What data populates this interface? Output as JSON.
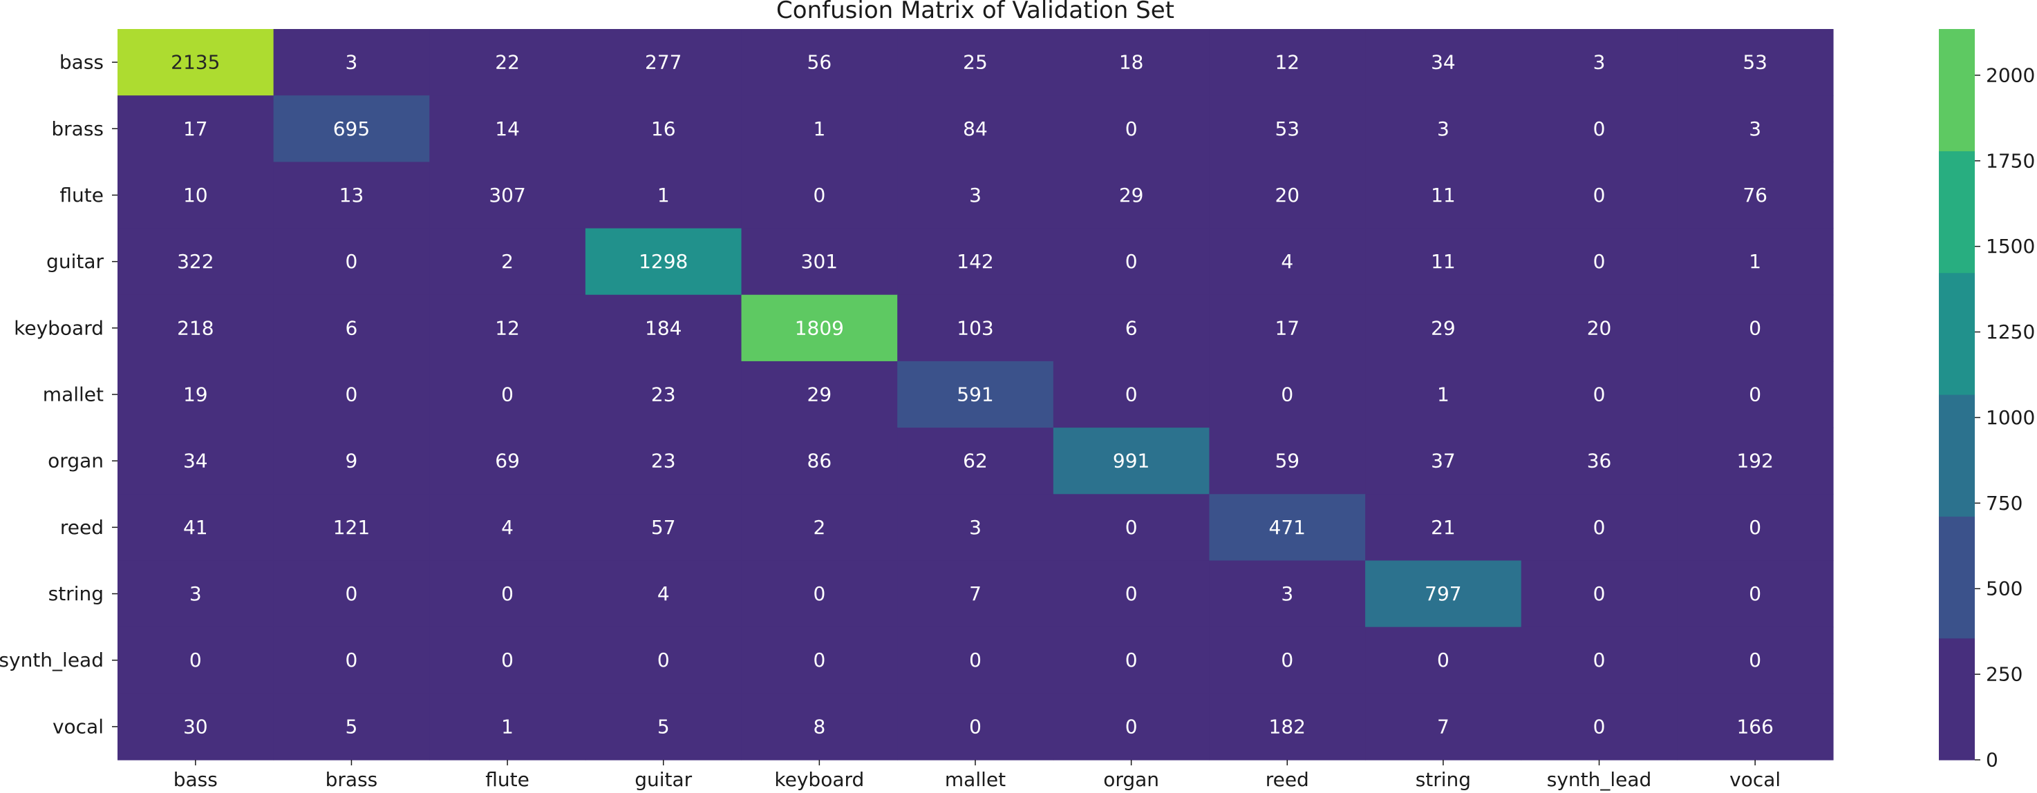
{
  "chart_data": {
    "type": "heatmap",
    "title": "Confusion Matrix of Validation Set",
    "xlabel": "",
    "ylabel": "",
    "x_categories": [
      "bass",
      "brass",
      "flute",
      "guitar",
      "keyboard",
      "mallet",
      "organ",
      "reed",
      "string",
      "synth_lead",
      "vocal"
    ],
    "y_categories": [
      "bass",
      "brass",
      "flute",
      "guitar",
      "keyboard",
      "mallet",
      "organ",
      "reed",
      "string",
      "synth_lead",
      "vocal"
    ],
    "values": [
      [
        2135,
        3,
        22,
        277,
        56,
        25,
        18,
        12,
        34,
        3,
        53
      ],
      [
        17,
        695,
        14,
        16,
        1,
        84,
        0,
        53,
        3,
        0,
        3
      ],
      [
        10,
        13,
        307,
        1,
        0,
        3,
        29,
        20,
        11,
        0,
        76
      ],
      [
        322,
        0,
        2,
        1298,
        301,
        142,
        0,
        4,
        11,
        0,
        1
      ],
      [
        218,
        6,
        12,
        184,
        1809,
        103,
        6,
        17,
        29,
        20,
        0
      ],
      [
        19,
        0,
        0,
        23,
        29,
        591,
        0,
        0,
        1,
        0,
        0
      ],
      [
        34,
        9,
        69,
        23,
        86,
        62,
        991,
        59,
        37,
        36,
        192
      ],
      [
        41,
        121,
        4,
        57,
        2,
        3,
        0,
        471,
        21,
        0,
        0
      ],
      [
        3,
        0,
        0,
        4,
        0,
        7,
        0,
        3,
        797,
        0,
        0
      ],
      [
        0,
        0,
        0,
        0,
        0,
        0,
        0,
        0,
        0,
        0,
        0
      ],
      [
        30,
        5,
        1,
        5,
        8,
        0,
        0,
        182,
        7,
        0,
        166
      ]
    ],
    "colorbar": {
      "min": 0,
      "max": 2135,
      "ticks": [
        0,
        250,
        500,
        750,
        1000,
        1250,
        1500,
        1750,
        2000
      ],
      "bin_edges": [
        0,
        355.8,
        711.7,
        1067.5,
        1423.3,
        1779.2,
        2135
      ],
      "colors": [
        "#472f7d",
        "#3b528b",
        "#2c728e",
        "#21918c",
        "#28ae80",
        "#5ec962",
        "#addc30"
      ]
    },
    "light_text_color": "#ffffff",
    "dark_text_color": "#262626",
    "grid": false
  }
}
